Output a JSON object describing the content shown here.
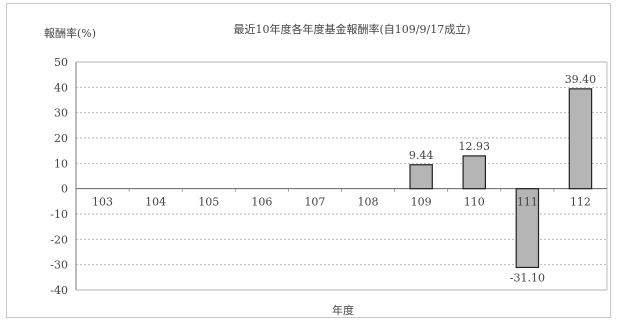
{
  "chart_data": {
    "type": "bar",
    "title": "最近10年度各年度基金報酬率(自109/9/17成立)",
    "ylabel": "報酬率(%)",
    "xlabel": "年度",
    "categories": [
      "103",
      "104",
      "105",
      "106",
      "107",
      "108",
      "109",
      "110",
      "111",
      "112"
    ],
    "values": [
      null,
      null,
      null,
      null,
      null,
      null,
      9.44,
      12.93,
      -31.1,
      39.4
    ],
    "data_labels": [
      "",
      "",
      "",
      "",
      "",
      "",
      "9.44",
      "12.93",
      "-31.10",
      "39.40"
    ],
    "ylim": [
      -40,
      50
    ],
    "yticks": [
      50,
      40,
      30,
      20,
      10,
      0,
      -10,
      -20,
      -30,
      -40
    ],
    "grid": true,
    "legend": "none",
    "colors": {
      "bar": "#b5b5b5",
      "bar_edge": "#222222",
      "grid": "#9a9a9a",
      "text": "#444444"
    }
  }
}
